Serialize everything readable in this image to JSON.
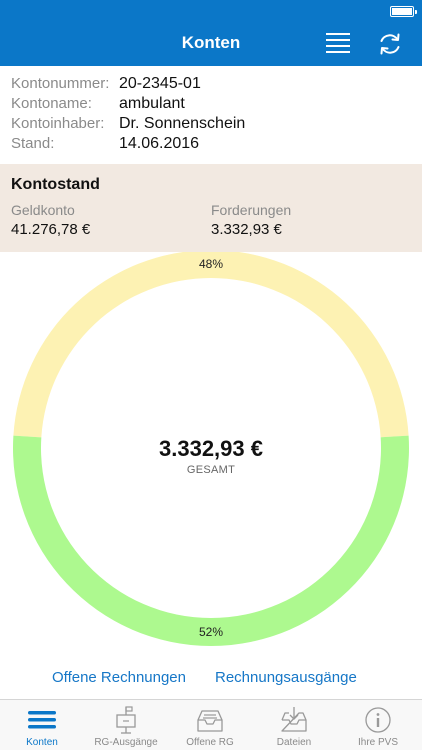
{
  "nav": {
    "title": "Konten",
    "list_icon": "list-icon",
    "refresh_icon": "refresh-icon"
  },
  "info": {
    "rows": [
      {
        "label": "Kontonummer:",
        "value": "20-2345-01"
      },
      {
        "label": "Kontoname:",
        "value": "ambulant"
      },
      {
        "label": "Kontoinhaber:",
        "value": "Dr. Sonnenschein"
      },
      {
        "label": "Stand:",
        "value": "14.06.2016"
      }
    ]
  },
  "kontostand": {
    "title": "Kontostand",
    "geldkonto_label": "Geldkonto",
    "geldkonto_value": "41.276,78 €",
    "forderungen_label": "Forderungen",
    "forderungen_value": "3.332,93 €"
  },
  "chart_data": {
    "type": "pie",
    "categories": [
      "",
      ""
    ],
    "values": [
      48,
      52
    ],
    "value_labels": [
      "48%",
      "52%"
    ],
    "colors": [
      "#fdf2b3",
      "#adf98f"
    ],
    "center_value": "3.332,93 €",
    "center_label": "GESAMT"
  },
  "links": {
    "offene_rechnungen": "Offene Rechnungen",
    "rechnungsausgaenge": "Rechnungsausgänge"
  },
  "tabs": [
    {
      "label": "Konten",
      "icon": "list-icon",
      "active": true
    },
    {
      "label": "RG-Ausgänge",
      "icon": "mailbox-icon",
      "active": false
    },
    {
      "label": "Offene RG",
      "icon": "inbox-tray-icon",
      "active": false
    },
    {
      "label": "Dateien",
      "icon": "download-tray-icon",
      "active": false
    },
    {
      "label": "Ihre PVS",
      "icon": "info-icon",
      "active": false
    }
  ],
  "colors": {
    "primary": "#0b77c8",
    "link": "#1677c7",
    "summary_bg": "#f2e9e1"
  }
}
